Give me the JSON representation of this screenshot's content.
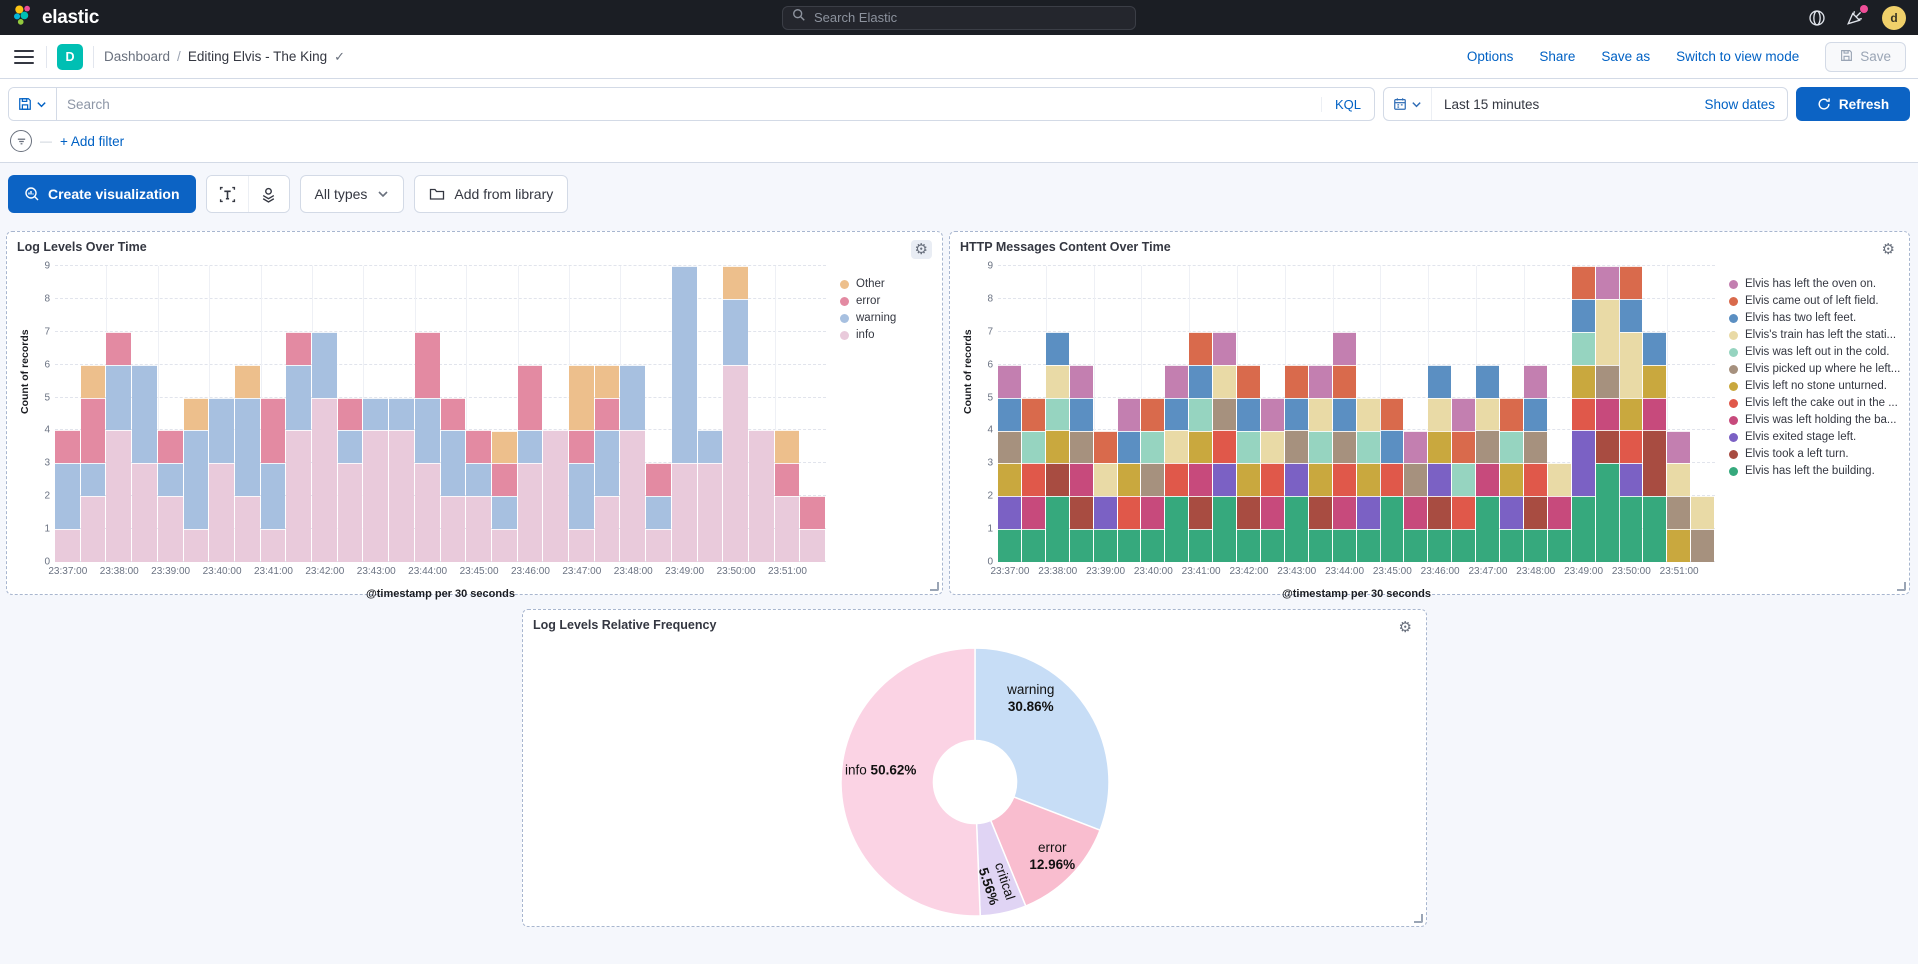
{
  "header": {
    "brand": "elastic",
    "search_placeholder": "Search Elastic"
  },
  "breadcrumbs": {
    "badge": "D",
    "section": "Dashboard",
    "separator": "/",
    "page": "Editing Elvis - The King"
  },
  "top_actions": {
    "options": "Options",
    "share": "Share",
    "save_as": "Save as",
    "switch_view": "Switch to view mode",
    "save": "Save"
  },
  "query_bar": {
    "search_placeholder": "Search",
    "kql": "KQL",
    "time_range": "Last 15 minutes",
    "show_dates": "Show dates",
    "refresh": "Refresh",
    "add_filter": "+ Add filter"
  },
  "toolbar": {
    "create_visualization": "Create visualization",
    "all_types": "All types",
    "add_from_library": "Add from library"
  },
  "chart_data": [
    {
      "type": "bar",
      "title": "Log Levels Over Time",
      "xlabel": "@timestamp per 30 seconds",
      "ylabel": "Count of records",
      "ylim": [
        0,
        9
      ],
      "bin_count": 30,
      "x_ticks": [
        "23:37:00",
        "23:38:00",
        "23:39:00",
        "23:40:00",
        "23:41:00",
        "23:42:00",
        "23:43:00",
        "23:44:00",
        "23:45:00",
        "23:46:00",
        "23:47:00",
        "23:48:00",
        "23:49:00",
        "23:50:00",
        "23:51:00"
      ],
      "legend_position": "right",
      "series": [
        {
          "name": "Other",
          "color": "#edbf8c",
          "values": [
            0,
            1,
            0,
            0,
            0,
            1,
            0,
            1,
            0,
            0,
            0,
            0,
            0,
            0,
            0,
            0,
            0,
            1,
            0,
            0,
            2,
            1,
            0,
            0,
            0,
            0,
            1,
            0,
            1,
            0
          ]
        },
        {
          "name": "error",
          "color": "#e38aa2",
          "values": [
            1,
            2,
            1,
            0,
            1,
            0,
            0,
            0,
            2,
            1,
            0,
            1,
            0,
            0,
            2,
            1,
            1,
            1,
            2,
            0,
            1,
            1,
            0,
            1,
            0,
            0,
            0,
            0,
            1,
            1
          ]
        },
        {
          "name": "warning",
          "color": "#a7c0e0",
          "values": [
            2,
            1,
            2,
            3,
            1,
            3,
            2,
            3,
            2,
            2,
            2,
            1,
            1,
            1,
            2,
            2,
            1,
            1,
            1,
            0,
            2,
            2,
            2,
            1,
            6,
            1,
            2,
            0,
            0,
            0
          ]
        },
        {
          "name": "info",
          "color": "#e9cadb",
          "values": [
            1,
            2,
            4,
            3,
            2,
            1,
            3,
            2,
            1,
            4,
            5,
            3,
            4,
            4,
            3,
            2,
            2,
            1,
            3,
            4,
            1,
            2,
            4,
            1,
            3,
            3,
            6,
            4,
            2,
            1
          ]
        }
      ],
      "stack_order": "reverse_of_legend"
    },
    {
      "type": "bar",
      "title": "HTTP Messages Content Over Time",
      "xlabel": "@timestamp per 30 seconds",
      "ylabel": "Count of records",
      "ylim": [
        0,
        9
      ],
      "bin_count": 30,
      "x_ticks": [
        "23:37:00",
        "23:38:00",
        "23:39:00",
        "23:40:00",
        "23:41:00",
        "23:42:00",
        "23:43:00",
        "23:44:00",
        "23:45:00",
        "23:46:00",
        "23:47:00",
        "23:48:00",
        "23:49:00",
        "23:50:00",
        "23:51:00"
      ],
      "legend_position": "right",
      "series": [
        {
          "name": "Elvis has left the oven on.",
          "color": "#c37fb0"
        },
        {
          "name": "Elvis came out of left field.",
          "color": "#d96a4c"
        },
        {
          "name": "Elvis has two left feet.",
          "color": "#5b8fc2"
        },
        {
          "name": "Elvis's train has left the stati...",
          "color": "#e9daa6"
        },
        {
          "name": "Elvis was left out in the cold.",
          "color": "#96d4c0"
        },
        {
          "name": "Elvis picked up where he left...",
          "color": "#a6917e"
        },
        {
          "name": "Elvis left no stone unturned.",
          "color": "#c9a83e"
        },
        {
          "name": "Elvis left the cake out in the ...",
          "color": "#e0584a"
        },
        {
          "name": "Elvis was left holding the ba...",
          "color": "#c74a7c"
        },
        {
          "name": "Elvis exited stage left.",
          "color": "#7b61c4"
        },
        {
          "name": "Elvis took a left turn.",
          "color": "#a84c41"
        },
        {
          "name": "Elvis has left the building.",
          "color": "#36a97d"
        }
      ],
      "bars_segments": [
        [
          [
            11,
            1
          ],
          [
            9,
            1
          ],
          [
            6,
            1
          ],
          [
            5,
            1
          ],
          [
            2,
            1
          ],
          [
            0,
            1
          ]
        ],
        [
          [
            11,
            1
          ],
          [
            8,
            1
          ],
          [
            7,
            1
          ],
          [
            4,
            1
          ],
          [
            1,
            1
          ]
        ],
        [
          [
            11,
            2
          ],
          [
            10,
            1
          ],
          [
            6,
            1
          ],
          [
            4,
            1
          ],
          [
            3,
            1
          ],
          [
            2,
            1
          ]
        ],
        [
          [
            11,
            1
          ],
          [
            10,
            1
          ],
          [
            8,
            1
          ],
          [
            5,
            1
          ],
          [
            2,
            1
          ],
          [
            0,
            1
          ]
        ],
        [
          [
            11,
            1
          ],
          [
            9,
            1
          ],
          [
            3,
            1
          ],
          [
            1,
            1
          ]
        ],
        [
          [
            11,
            1
          ],
          [
            7,
            1
          ],
          [
            6,
            1
          ],
          [
            2,
            1
          ],
          [
            0,
            1
          ]
        ],
        [
          [
            11,
            1
          ],
          [
            8,
            1
          ],
          [
            5,
            1
          ],
          [
            4,
            1
          ],
          [
            1,
            1
          ]
        ],
        [
          [
            11,
            2
          ],
          [
            7,
            1
          ],
          [
            3,
            1
          ],
          [
            2,
            1
          ],
          [
            0,
            1
          ]
        ],
        [
          [
            11,
            1
          ],
          [
            10,
            1
          ],
          [
            8,
            1
          ],
          [
            6,
            1
          ],
          [
            4,
            1
          ],
          [
            2,
            1
          ],
          [
            1,
            1
          ]
        ],
        [
          [
            11,
            2
          ],
          [
            9,
            1
          ],
          [
            7,
            1
          ],
          [
            5,
            1
          ],
          [
            3,
            1
          ],
          [
            0,
            1
          ]
        ],
        [
          [
            11,
            1
          ],
          [
            10,
            1
          ],
          [
            6,
            1
          ],
          [
            4,
            1
          ],
          [
            2,
            1
          ],
          [
            1,
            1
          ]
        ],
        [
          [
            11,
            1
          ],
          [
            8,
            1
          ],
          [
            7,
            1
          ],
          [
            3,
            1
          ],
          [
            0,
            1
          ]
        ],
        [
          [
            11,
            2
          ],
          [
            9,
            1
          ],
          [
            5,
            1
          ],
          [
            2,
            1
          ],
          [
            1,
            1
          ]
        ],
        [
          [
            11,
            1
          ],
          [
            10,
            1
          ],
          [
            6,
            1
          ],
          [
            4,
            1
          ],
          [
            3,
            1
          ],
          [
            0,
            1
          ]
        ],
        [
          [
            11,
            1
          ],
          [
            8,
            1
          ],
          [
            7,
            1
          ],
          [
            5,
            1
          ],
          [
            2,
            1
          ],
          [
            1,
            1
          ],
          [
            0,
            1
          ]
        ],
        [
          [
            11,
            1
          ],
          [
            9,
            1
          ],
          [
            6,
            1
          ],
          [
            4,
            1
          ],
          [
            3,
            1
          ]
        ],
        [
          [
            11,
            2
          ],
          [
            7,
            1
          ],
          [
            2,
            1
          ],
          [
            1,
            1
          ]
        ],
        [
          [
            11,
            1
          ],
          [
            8,
            1
          ],
          [
            5,
            1
          ],
          [
            0,
            1
          ]
        ],
        [
          [
            11,
            1
          ],
          [
            10,
            1
          ],
          [
            9,
            1
          ],
          [
            6,
            1
          ],
          [
            3,
            1
          ],
          [
            2,
            1
          ]
        ],
        [
          [
            11,
            1
          ],
          [
            7,
            1
          ],
          [
            4,
            1
          ],
          [
            1,
            1
          ],
          [
            0,
            1
          ]
        ],
        [
          [
            11,
            2
          ],
          [
            8,
            1
          ],
          [
            5,
            1
          ],
          [
            3,
            1
          ],
          [
            2,
            1
          ]
        ],
        [
          [
            11,
            1
          ],
          [
            9,
            1
          ],
          [
            6,
            1
          ],
          [
            4,
            1
          ],
          [
            1,
            1
          ]
        ],
        [
          [
            11,
            1
          ],
          [
            10,
            1
          ],
          [
            7,
            1
          ],
          [
            5,
            1
          ],
          [
            2,
            1
          ],
          [
            0,
            1
          ]
        ],
        [
          [
            11,
            1
          ],
          [
            8,
            1
          ],
          [
            3,
            1
          ]
        ],
        [
          [
            11,
            2
          ],
          [
            9,
            2
          ],
          [
            7,
            1
          ],
          [
            6,
            1
          ],
          [
            4,
            1
          ],
          [
            2,
            1
          ],
          [
            1,
            1
          ]
        ],
        [
          [
            11,
            3
          ],
          [
            10,
            1
          ],
          [
            8,
            1
          ],
          [
            5,
            1
          ],
          [
            3,
            2
          ],
          [
            0,
            1
          ]
        ],
        [
          [
            11,
            2
          ],
          [
            9,
            1
          ],
          [
            7,
            1
          ],
          [
            6,
            1
          ],
          [
            3,
            2
          ],
          [
            2,
            1
          ],
          [
            1,
            1
          ]
        ],
        [
          [
            11,
            2
          ],
          [
            10,
            2
          ],
          [
            8,
            1
          ],
          [
            6,
            1
          ],
          [
            2,
            1
          ]
        ],
        [
          [
            6,
            1
          ],
          [
            5,
            1
          ],
          [
            3,
            1
          ],
          [
            0,
            1
          ]
        ],
        [
          [
            5,
            1
          ],
          [
            3,
            1
          ]
        ]
      ]
    },
    {
      "type": "pie",
      "title": "Log Levels Relative Frequency",
      "hole_ratio": 0.31,
      "slices": [
        {
          "label": "warning",
          "value": 30.86,
          "display": "30.86%",
          "color": "#c7ddf6",
          "layout": "stacked",
          "fx": 0.42,
          "fy": -0.62,
          "rot": 0
        },
        {
          "label": "error",
          "value": 12.96,
          "display": "12.96%",
          "color": "#f9bdcf",
          "layout": "stacked",
          "fx": 0.58,
          "fy": 0.56,
          "rot": 0
        },
        {
          "label": "critical",
          "value": 5.56,
          "display": "5.56%",
          "color": "#e0d4f4",
          "layout": "stacked",
          "fx": 0.16,
          "fy": 0.76,
          "rot": 72
        },
        {
          "label": "info",
          "value": 50.62,
          "display": "50.62%",
          "color": "#fbd3e4",
          "layout": "inline",
          "fx": -0.7,
          "fy": -0.08,
          "rot": 0
        }
      ]
    }
  ]
}
